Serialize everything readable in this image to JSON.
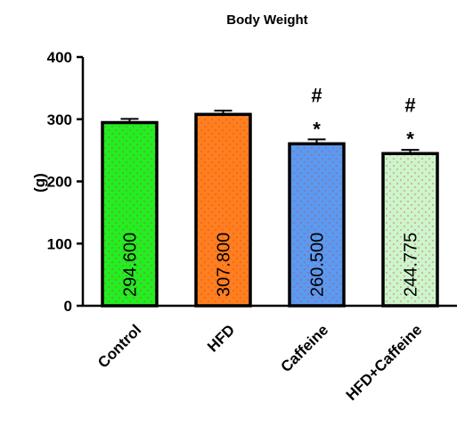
{
  "chart_data": {
    "type": "bar",
    "title": "Body Weight",
    "xlabel": "",
    "ylabel": "(g)",
    "ylim": [
      0,
      400
    ],
    "yticks": [
      0,
      100,
      200,
      300,
      400
    ],
    "categories": [
      "Control",
      "HFD",
      "Caffeine",
      "HFD+Caffeine"
    ],
    "values": [
      294.6,
      307.8,
      260.5,
      244.775
    ],
    "value_labels": [
      "294.600",
      "307.800",
      "260.500",
      "244.775"
    ],
    "error": [
      6,
      6,
      7,
      6
    ],
    "colors": [
      "#22ee22",
      "#ff7f1e",
      "#5b9af0",
      "#ccf5cc"
    ],
    "annotations": [
      [],
      [],
      [
        "#",
        "*"
      ],
      [
        "#",
        "*"
      ]
    ],
    "grid": false,
    "legend": "none"
  }
}
